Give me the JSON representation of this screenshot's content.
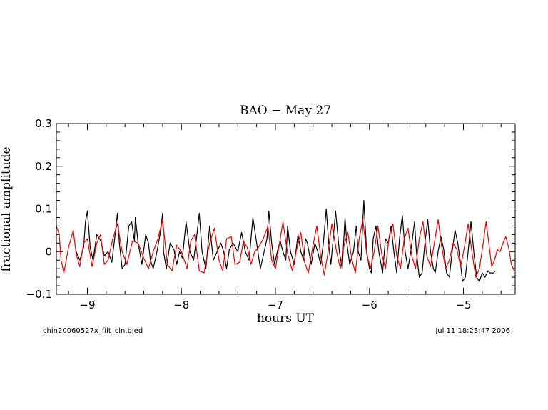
{
  "chart_data": {
    "type": "line",
    "title": "BAO  −  May 27",
    "xlabel": "hours UT",
    "ylabel": "fractional amplitude",
    "xlim": [
      -9.33,
      -4.45
    ],
    "ylim": [
      -0.1,
      0.3
    ],
    "x_ticks": [
      -9,
      -8,
      -7,
      -6,
      -5
    ],
    "x_tick_labels": [
      "−9",
      "−8",
      "−7",
      "−6",
      "−5"
    ],
    "y_ticks": [
      -0.1,
      0,
      0.1,
      0.2,
      0.3
    ],
    "y_tick_labels": [
      "−0.1",
      "0",
      "0.1",
      "0.2",
      "0.3"
    ],
    "grid": false,
    "series": [
      {
        "color": "#000000",
        "x": [
          -9.12,
          -9.08,
          -9.04,
          -9.02,
          -9.0,
          -8.97,
          -8.94,
          -8.9,
          -8.87,
          -8.85,
          -8.82,
          -8.78,
          -8.74,
          -8.71,
          -8.68,
          -8.66,
          -8.63,
          -8.6,
          -8.56,
          -8.53,
          -8.5,
          -8.49,
          -8.46,
          -8.42,
          -8.38,
          -8.35,
          -8.33,
          -8.3,
          -8.26,
          -8.22,
          -8.2,
          -8.19,
          -8.16,
          -8.12,
          -8.08,
          -8.05,
          -8.02,
          -7.99,
          -7.95,
          -7.91,
          -7.87,
          -7.84,
          -7.81,
          -7.78,
          -7.74,
          -7.7,
          -7.68,
          -7.66,
          -7.62,
          -7.58,
          -7.55,
          -7.52,
          -7.49,
          -7.45,
          -7.4,
          -7.36,
          -7.32,
          -7.28,
          -7.24,
          -7.2,
          -7.16,
          -7.12,
          -7.09,
          -7.07,
          -7.04,
          -7.01,
          -6.98,
          -6.95,
          -6.92,
          -6.89,
          -6.87,
          -6.84,
          -6.8,
          -6.76,
          -6.73,
          -6.7,
          -6.68,
          -6.66,
          -6.62,
          -6.58,
          -6.55,
          -6.52,
          -6.49,
          -6.46,
          -6.43,
          -6.41,
          -6.39,
          -6.36,
          -6.32,
          -6.29,
          -6.26,
          -6.24,
          -6.21,
          -6.17,
          -6.14,
          -6.12,
          -6.09,
          -6.06,
          -6.03,
          -6.0,
          -5.98,
          -5.96,
          -5.93,
          -5.9,
          -5.86,
          -5.83,
          -5.8,
          -5.77,
          -5.74,
          -5.71,
          -5.68,
          -5.65,
          -5.62,
          -5.59,
          -5.56,
          -5.52,
          -5.5,
          -5.47,
          -5.44,
          -5.41,
          -5.38,
          -5.35,
          -5.32,
          -5.3,
          -5.27,
          -5.24,
          -5.21,
          -5.18,
          -5.15,
          -5.12,
          -5.09,
          -5.06,
          -5.03,
          -5.01,
          -4.98,
          -4.95,
          -4.92,
          -4.89,
          -4.86,
          -4.83,
          -4.8,
          -4.77,
          -4.74,
          -4.72,
          -4.7,
          -4.68,
          -4.66
        ],
        "y": [
          0.0,
          -0.02,
          0.01,
          0.07,
          0.095,
          0.01,
          -0.02,
          0.04,
          0.03,
          0.02,
          -0.01,
          0.0,
          -0.025,
          0.03,
          0.09,
          0.02,
          -0.04,
          -0.03,
          0.06,
          0.07,
          0.025,
          0.08,
          0.02,
          -0.03,
          0.04,
          0.02,
          -0.02,
          -0.04,
          0.0,
          0.05,
          0.09,
          0.0,
          -0.04,
          0.02,
          0.005,
          -0.03,
          0.0,
          -0.015,
          0.07,
          0.0,
          -0.02,
          0.03,
          0.09,
          0.0,
          -0.04,
          0.06,
          0.02,
          -0.02,
          0.0,
          0.02,
          0.0,
          -0.04,
          0.005,
          0.02,
          0.0,
          0.045,
          0.0,
          -0.02,
          0.08,
          0.02,
          -0.04,
          0.0,
          0.03,
          0.095,
          0.02,
          -0.03,
          0.0,
          0.025,
          0.0,
          -0.02,
          0.06,
          0.0,
          -0.03,
          0.04,
          0.0,
          -0.02,
          0.03,
          0.02,
          -0.03,
          0.02,
          0.0,
          -0.03,
          0.02,
          0.1,
          0.01,
          -0.03,
          0.02,
          0.095,
          0.0,
          -0.04,
          0.08,
          0.02,
          -0.03,
          0.0,
          0.06,
          0.0,
          -0.02,
          0.12,
          0.0,
          -0.04,
          -0.05,
          0.03,
          0.06,
          0.0,
          -0.05,
          0.03,
          0.02,
          0.06,
          0.0,
          -0.05,
          0.03,
          0.085,
          0.0,
          -0.04,
          0.0,
          0.07,
          0.0,
          -0.06,
          -0.05,
          0.02,
          0.075,
          0.0,
          -0.04,
          -0.05,
          0.0,
          0.035,
          0.005,
          -0.05,
          -0.06,
          0.0,
          0.05,
          0.02,
          -0.03,
          -0.07,
          -0.06,
          0.0,
          0.07,
          0.0,
          -0.06,
          -0.07,
          -0.05,
          -0.06,
          -0.045,
          -0.05,
          -0.05,
          -0.05,
          -0.045
        ]
      },
      {
        "color": "#ee0000",
        "x": [
          -9.33,
          -9.3,
          -9.28,
          -9.25,
          -9.2,
          -9.15,
          -9.12,
          -9.08,
          -9.04,
          -9.0,
          -8.95,
          -8.9,
          -8.86,
          -8.82,
          -8.78,
          -8.73,
          -8.68,
          -8.63,
          -8.58,
          -8.52,
          -8.46,
          -8.4,
          -8.35,
          -8.3,
          -8.25,
          -8.2,
          -8.15,
          -8.1,
          -8.05,
          -8.0,
          -7.94,
          -7.9,
          -7.86,
          -7.81,
          -7.76,
          -7.7,
          -7.65,
          -7.6,
          -7.56,
          -7.52,
          -7.47,
          -7.43,
          -7.38,
          -7.34,
          -7.3,
          -7.26,
          -7.22,
          -7.18,
          -7.13,
          -7.08,
          -7.04,
          -7.0,
          -6.96,
          -6.92,
          -6.87,
          -6.82,
          -6.78,
          -6.73,
          -6.69,
          -6.65,
          -6.6,
          -6.56,
          -6.52,
          -6.48,
          -6.44,
          -6.4,
          -6.35,
          -6.31,
          -6.27,
          -6.23,
          -6.19,
          -6.15,
          -6.11,
          -6.07,
          -6.03,
          -5.99,
          -5.95,
          -5.91,
          -5.87,
          -5.83,
          -5.79,
          -5.75,
          -5.71,
          -5.67,
          -5.63,
          -5.59,
          -5.55,
          -5.51,
          -5.47,
          -5.43,
          -5.39,
          -5.35,
          -5.31,
          -5.27,
          -5.23,
          -5.19,
          -5.15,
          -5.11,
          -5.07,
          -5.03,
          -4.99,
          -4.95,
          -4.91,
          -4.87,
          -4.83,
          -4.79,
          -4.76,
          -4.73,
          -4.7,
          -4.67,
          -4.64,
          -4.61,
          -4.58,
          -4.55,
          -4.52,
          -4.49,
          -4.46
        ],
        "y": [
          0.06,
          0.04,
          -0.02,
          -0.05,
          0.01,
          0.05,
          -0.005,
          -0.035,
          0.02,
          0.03,
          -0.035,
          0.02,
          0.04,
          -0.03,
          -0.02,
          0.03,
          0.065,
          0.0,
          -0.03,
          0.025,
          0.02,
          -0.015,
          -0.04,
          0.0,
          0.03,
          0.075,
          -0.03,
          -0.045,
          0.015,
          0.0,
          -0.04,
          0.025,
          0.04,
          -0.045,
          -0.05,
          0.02,
          0.055,
          -0.02,
          -0.045,
          0.03,
          0.035,
          -0.03,
          -0.025,
          0.025,
          0.01,
          -0.03,
          0.0,
          0.01,
          0.03,
          0.06,
          -0.02,
          -0.04,
          0.015,
          0.07,
          -0.005,
          -0.045,
          0.0,
          0.045,
          -0.025,
          -0.05,
          0.015,
          0.06,
          -0.01,
          -0.055,
          0.0,
          0.065,
          0.0,
          -0.04,
          0.015,
          0.045,
          -0.015,
          -0.05,
          0.03,
          0.075,
          -0.005,
          -0.04,
          0.0,
          0.06,
          -0.005,
          -0.04,
          0.035,
          0.065,
          -0.01,
          -0.04,
          0.03,
          0.055,
          -0.01,
          -0.04,
          0.03,
          0.07,
          -0.01,
          -0.035,
          0.02,
          0.075,
          0.01,
          -0.04,
          -0.02,
          0.02,
          0.005,
          -0.035,
          0.01,
          0.065,
          0.0,
          -0.06,
          -0.04,
          0.02,
          0.07,
          0.02,
          -0.035,
          -0.02,
          0.005,
          0.0,
          0.02,
          0.035,
          0.01,
          -0.03,
          -0.045
        ]
      }
    ]
  },
  "footer": {
    "left": "chin20060527x_filt_cln.bjed",
    "right": "Jul 11 18:23:47 2006"
  }
}
